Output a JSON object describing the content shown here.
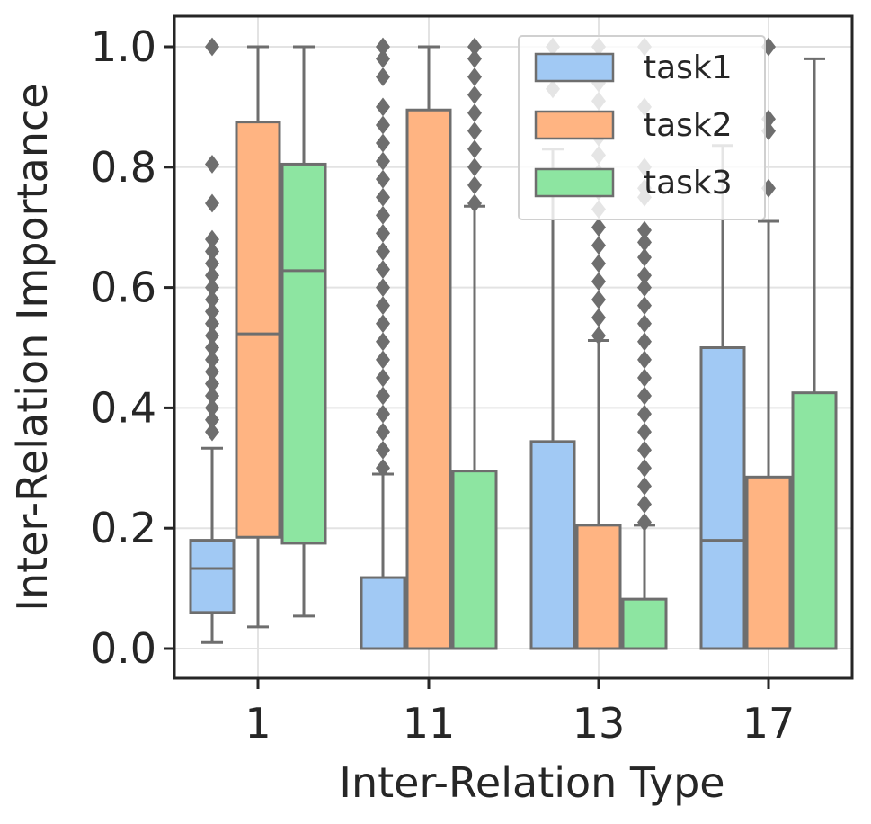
{
  "chart_data": {
    "type": "box",
    "xlabel": "Inter-Relation Type",
    "ylabel": "Inter-Relation Importance",
    "ylim": [
      -0.05,
      1.05
    ],
    "yticks": [
      "0.0",
      "0.2",
      "0.4",
      "0.6",
      "0.8",
      "1.0"
    ],
    "categories": [
      "1",
      "11",
      "13",
      "17"
    ],
    "grid": true,
    "legend_position": "top-right",
    "series": [
      {
        "name": "task1",
        "color": "#a1c9f4",
        "boxes": [
          {
            "whisker_low": 0.01,
            "q1": 0.06,
            "median": 0.133,
            "q3": 0.18,
            "whisker_high": 0.333,
            "outliers": [
              0.36,
              0.38,
              0.4,
              0.42,
              0.44,
              0.46,
              0.48,
              0.5,
              0.52,
              0.54,
              0.56,
              0.58,
              0.6,
              0.62,
              0.64,
              0.66,
              0.68,
              0.74,
              0.805,
              1.0
            ]
          },
          {
            "whisker_low": 0.0,
            "q1": 0.0,
            "median": 0.0,
            "q3": 0.118,
            "whisker_high": 0.29,
            "outliers": [
              0.3,
              0.33,
              0.36,
              0.39,
              0.42,
              0.45,
              0.48,
              0.51,
              0.54,
              0.57,
              0.6,
              0.63,
              0.66,
              0.69,
              0.72,
              0.75,
              0.78,
              0.81,
              0.84,
              0.87,
              0.9,
              0.95,
              0.98,
              1.0
            ]
          },
          {
            "whisker_low": 0.0,
            "q1": 0.0,
            "median": 0.0,
            "q3": 0.344,
            "whisker_high": 0.83,
            "outliers": [
              0.93,
              0.955,
              1.0
            ]
          },
          {
            "whisker_low": 0.0,
            "q1": 0.0,
            "median": 0.18,
            "q3": 0.5,
            "whisker_high": 0.836,
            "outliers": []
          }
        ]
      },
      {
        "name": "task2",
        "color": "#ffb482",
        "boxes": [
          {
            "whisker_low": 0.036,
            "q1": 0.185,
            "median": 0.523,
            "q3": 0.875,
            "whisker_high": 1.0,
            "outliers": []
          },
          {
            "whisker_low": 0.0,
            "q1": 0.0,
            "median": 0.0,
            "q3": 0.895,
            "whisker_high": 1.0,
            "outliers": []
          },
          {
            "whisker_low": 0.0,
            "q1": 0.0,
            "median": 0.0,
            "q3": 0.205,
            "whisker_high": 0.512,
            "outliers": [
              0.52,
              0.55,
              0.58,
              0.61,
              0.64,
              0.67,
              0.7,
              0.73,
              0.76,
              0.79,
              0.82,
              0.85,
              0.88,
              0.91,
              0.94,
              0.97,
              1.0
            ]
          },
          {
            "whisker_low": 0.0,
            "q1": 0.0,
            "median": 0.0,
            "q3": 0.285,
            "whisker_high": 0.71,
            "outliers": [
              0.765,
              0.86,
              0.88,
              1.0
            ]
          }
        ]
      },
      {
        "name": "task3",
        "color": "#8de5a1",
        "boxes": [
          {
            "whisker_low": 0.054,
            "q1": 0.175,
            "median": 0.628,
            "q3": 0.805,
            "whisker_high": 1.0,
            "outliers": []
          },
          {
            "whisker_low": 0.0,
            "q1": 0.0,
            "median": 0.0,
            "q3": 0.295,
            "whisker_high": 0.735,
            "outliers": [
              0.74,
              0.77,
              0.8,
              0.83,
              0.86,
              0.89,
              0.92,
              0.95,
              0.98,
              1.0
            ]
          },
          {
            "whisker_low": 0.0,
            "q1": 0.0,
            "median": 0.0,
            "q3": 0.082,
            "whisker_high": 0.205,
            "outliers": [
              0.21,
              0.24,
              0.27,
              0.3,
              0.33,
              0.36,
              0.39,
              0.42,
              0.45,
              0.48,
              0.51,
              0.54,
              0.57,
              0.6,
              0.62,
              0.65,
              0.675,
              0.695,
              0.75,
              0.765,
              0.8,
              0.9,
              1.0
            ]
          },
          {
            "whisker_low": 0.0,
            "q1": 0.0,
            "median": 0.0,
            "q3": 0.425,
            "whisker_high": 0.98,
            "outliers": []
          }
        ]
      }
    ]
  }
}
